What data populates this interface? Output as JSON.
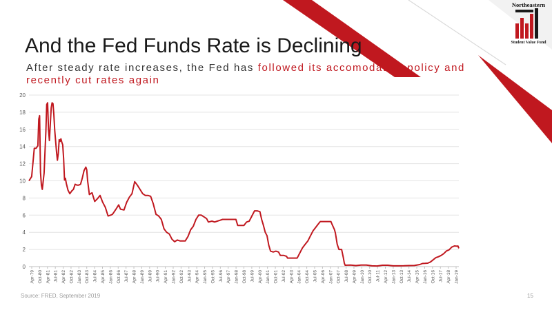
{
  "slide": {
    "title": "And the Fed Funds Rate is Declining",
    "subtitle_plain": "After steady rate increases, the Fed has ",
    "subtitle_accent": "followed its accomodative policy and recently cut rates again",
    "source": "Source: FRED, September 2019",
    "page_number": "15"
  },
  "logo": {
    "name": "Northeastern",
    "tagline": "Student Value Fund"
  },
  "colors": {
    "accent": "#c0181f",
    "title": "#1a1a1a",
    "grid": "#e3e3e3",
    "axis_text": "#595959",
    "footer": "#9a9a9a"
  },
  "chart_data": {
    "type": "line",
    "title": "",
    "xlabel": "",
    "ylabel": "",
    "ylim": [
      0,
      20
    ],
    "yticks": [
      0,
      2,
      4,
      6,
      8,
      10,
      12,
      14,
      16,
      18,
      20
    ],
    "grid": true,
    "legend": "none",
    "x_tick_labels": [
      "Apr-79",
      "Oct-80",
      "Apr-81",
      "Jul-81",
      "Apr-82",
      "Oct-82",
      "Jan-83",
      "Oct-83",
      "Jul-84",
      "Apr-85",
      "Jan-86",
      "Oct-86",
      "Jul-87",
      "Apr-88",
      "Jan-89",
      "Jul-89",
      "Jul-90",
      "Apr-91",
      "Jan-92",
      "Oct-92",
      "Jul-93",
      "Apr-94",
      "Jan-95",
      "Oct-95",
      "Jul-96",
      "Apr-97",
      "Jan-98",
      "Oct-98",
      "Jul-99",
      "Apr-00",
      "Jan-01",
      "Oct-01",
      "Jul-02",
      "Apr-03",
      "Jan-04",
      "Oct-04",
      "Jul-05",
      "Apr-06",
      "Jan-07",
      "Oct-07",
      "Jul-08",
      "Apr-09",
      "Jan-10",
      "Oct-10",
      "Jul-11",
      "Apr-12",
      "Jan-13",
      "Oct-13",
      "Jul-14",
      "Apr-15",
      "Jan-16",
      "Oct-16",
      "Jul-17",
      "Apr-18",
      "Jan-19"
    ],
    "series": [
      {
        "color": "#c0181f",
        "points": [
          [
            "1979-04",
            10.0
          ],
          [
            "1979-07",
            10.5
          ],
          [
            "1979-10",
            13.8
          ],
          [
            "1979-12",
            13.8
          ],
          [
            "1980-02",
            14.1
          ],
          [
            "1980-03",
            17.2
          ],
          [
            "1980-04",
            17.6
          ],
          [
            "1980-05",
            11.0
          ],
          [
            "1980-06",
            9.5
          ],
          [
            "1980-07",
            9.0
          ],
          [
            "1980-09",
            10.9
          ],
          [
            "1980-11",
            15.8
          ],
          [
            "1980-12",
            18.9
          ],
          [
            "1981-01",
            19.1
          ],
          [
            "1981-02",
            16.0
          ],
          [
            "1981-03",
            14.7
          ],
          [
            "1981-05",
            18.5
          ],
          [
            "1981-06",
            19.1
          ],
          [
            "1981-07",
            19.0
          ],
          [
            "1981-08",
            17.8
          ],
          [
            "1981-09",
            15.9
          ],
          [
            "1981-11",
            13.4
          ],
          [
            "1981-12",
            12.4
          ],
          [
            "1982-01",
            13.2
          ],
          [
            "1982-02",
            14.8
          ],
          [
            "1982-03",
            14.6
          ],
          [
            "1982-04",
            14.9
          ],
          [
            "1982-05",
            14.5
          ],
          [
            "1982-06",
            14.2
          ],
          [
            "1982-07",
            12.6
          ],
          [
            "1982-08",
            10.1
          ],
          [
            "1982-09",
            10.3
          ],
          [
            "1982-10",
            9.7
          ],
          [
            "1982-12",
            8.9
          ],
          [
            "1983-02",
            8.5
          ],
          [
            "1983-04",
            8.8
          ],
          [
            "1983-06",
            9.0
          ],
          [
            "1983-08",
            9.6
          ],
          [
            "1983-10",
            9.5
          ],
          [
            "1983-12",
            9.5
          ],
          [
            "1984-02",
            9.6
          ],
          [
            "1984-04",
            10.3
          ],
          [
            "1984-06",
            11.2
          ],
          [
            "1984-08",
            11.6
          ],
          [
            "1984-09",
            11.3
          ],
          [
            "1984-10",
            10.0
          ],
          [
            "1984-12",
            8.4
          ],
          [
            "1985-03",
            8.6
          ],
          [
            "1985-06",
            7.6
          ],
          [
            "1985-09",
            7.9
          ],
          [
            "1985-12",
            8.3
          ],
          [
            "1986-03",
            7.5
          ],
          [
            "1986-06",
            6.9
          ],
          [
            "1986-09",
            5.9
          ],
          [
            "1986-12",
            6.0
          ],
          [
            "1987-02",
            6.1
          ],
          [
            "1987-04",
            6.4
          ],
          [
            "1987-06",
            6.7
          ],
          [
            "1987-09",
            7.2
          ],
          [
            "1987-11",
            6.7
          ],
          [
            "1988-03",
            6.6
          ],
          [
            "1988-06",
            7.5
          ],
          [
            "1988-09",
            8.1
          ],
          [
            "1988-12",
            8.5
          ],
          [
            "1989-03",
            9.9
          ],
          [
            "1989-06",
            9.5
          ],
          [
            "1989-09",
            9.0
          ],
          [
            "1989-12",
            8.5
          ],
          [
            "1990-03",
            8.3
          ],
          [
            "1990-06",
            8.3
          ],
          [
            "1990-09",
            8.2
          ],
          [
            "1990-12",
            7.3
          ],
          [
            "1991-03",
            6.1
          ],
          [
            "1991-06",
            5.9
          ],
          [
            "1991-09",
            5.5
          ],
          [
            "1991-12",
            4.4
          ],
          [
            "1992-03",
            4.0
          ],
          [
            "1992-06",
            3.8
          ],
          [
            "1992-09",
            3.2
          ],
          [
            "1992-12",
            2.9
          ],
          [
            "1993-03",
            3.1
          ],
          [
            "1993-06",
            3.0
          ],
          [
            "1993-09",
            3.0
          ],
          [
            "1993-12",
            3.0
          ],
          [
            "1994-03",
            3.5
          ],
          [
            "1994-06",
            4.3
          ],
          [
            "1994-09",
            4.7
          ],
          [
            "1994-12",
            5.5
          ],
          [
            "1995-03",
            6.0
          ],
          [
            "1995-06",
            6.0
          ],
          [
            "1995-09",
            5.8
          ],
          [
            "1995-12",
            5.6
          ],
          [
            "1996-02",
            5.2
          ],
          [
            "1996-06",
            5.3
          ],
          [
            "1996-09",
            5.2
          ],
          [
            "1996-12",
            5.3
          ],
          [
            "1997-03",
            5.4
          ],
          [
            "1997-06",
            5.5
          ],
          [
            "1997-09",
            5.5
          ],
          [
            "1997-12",
            5.5
          ],
          [
            "1998-03",
            5.5
          ],
          [
            "1998-06",
            5.5
          ],
          [
            "1998-09",
            5.5
          ],
          [
            "1998-11",
            4.8
          ],
          [
            "1999-03",
            4.8
          ],
          [
            "1999-06",
            4.8
          ],
          [
            "1999-09",
            5.2
          ],
          [
            "1999-12",
            5.3
          ],
          [
            "2000-03",
            5.9
          ],
          [
            "2000-06",
            6.5
          ],
          [
            "2000-09",
            6.5
          ],
          [
            "2000-12",
            6.4
          ],
          [
            "2001-02",
            5.5
          ],
          [
            "2001-04",
            4.8
          ],
          [
            "2001-06",
            4.0
          ],
          [
            "2001-08",
            3.6
          ],
          [
            "2001-10",
            2.5
          ],
          [
            "2001-12",
            1.8
          ],
          [
            "2002-03",
            1.7
          ],
          [
            "2002-06",
            1.8
          ],
          [
            "2002-09",
            1.7
          ],
          [
            "2002-11",
            1.3
          ],
          [
            "2003-03",
            1.3
          ],
          [
            "2003-06",
            1.2
          ],
          [
            "2003-07",
            1.0
          ],
          [
            "2003-12",
            1.0
          ],
          [
            "2004-06",
            1.0
          ],
          [
            "2004-09",
            1.6
          ],
          [
            "2004-12",
            2.2
          ],
          [
            "2005-03",
            2.6
          ],
          [
            "2005-06",
            3.0
          ],
          [
            "2005-09",
            3.6
          ],
          [
            "2005-12",
            4.2
          ],
          [
            "2006-03",
            4.6
          ],
          [
            "2006-06",
            5.0
          ],
          [
            "2006-08",
            5.25
          ],
          [
            "2006-12",
            5.25
          ],
          [
            "2007-03",
            5.25
          ],
          [
            "2007-06",
            5.25
          ],
          [
            "2007-08",
            5.25
          ],
          [
            "2007-09",
            5.0
          ],
          [
            "2007-12",
            4.3
          ],
          [
            "2008-01",
            3.9
          ],
          [
            "2008-03",
            2.6
          ],
          [
            "2008-05",
            2.0
          ],
          [
            "2008-08",
            2.0
          ],
          [
            "2008-10",
            1.0
          ],
          [
            "2008-11",
            0.4
          ],
          [
            "2008-12",
            0.16
          ],
          [
            "2009-06",
            0.18
          ],
          [
            "2009-12",
            0.12
          ],
          [
            "2010-06",
            0.18
          ],
          [
            "2010-12",
            0.18
          ],
          [
            "2011-06",
            0.09
          ],
          [
            "2011-12",
            0.07
          ],
          [
            "2012-06",
            0.16
          ],
          [
            "2012-12",
            0.16
          ],
          [
            "2013-06",
            0.09
          ],
          [
            "2013-12",
            0.09
          ],
          [
            "2014-06",
            0.1
          ],
          [
            "2014-12",
            0.12
          ],
          [
            "2015-06",
            0.13
          ],
          [
            "2015-12",
            0.24
          ],
          [
            "2016-03",
            0.36
          ],
          [
            "2016-06",
            0.38
          ],
          [
            "2016-09",
            0.4
          ],
          [
            "2016-12",
            0.54
          ],
          [
            "2017-03",
            0.79
          ],
          [
            "2017-06",
            1.04
          ],
          [
            "2017-09",
            1.15
          ],
          [
            "2017-12",
            1.3
          ],
          [
            "2018-03",
            1.51
          ],
          [
            "2018-06",
            1.82
          ],
          [
            "2018-09",
            1.95
          ],
          [
            "2018-12",
            2.27
          ],
          [
            "2019-03",
            2.41
          ],
          [
            "2019-06",
            2.38
          ],
          [
            "2019-07",
            2.4
          ],
          [
            "2019-08",
            2.13
          ]
        ]
      }
    ]
  }
}
